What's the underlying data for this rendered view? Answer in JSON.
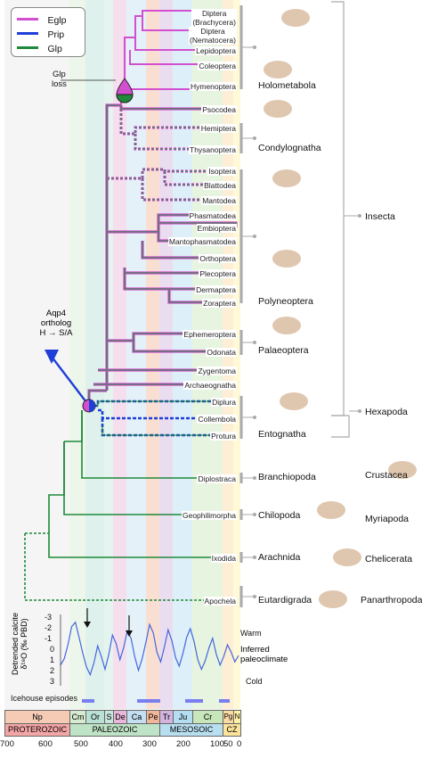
{
  "legend": {
    "items": [
      {
        "label": "Eglp",
        "color": "#d24fd0"
      },
      {
        "label": "Prip",
        "color": "#1f3fd8"
      },
      {
        "label": "Glp",
        "color": "#1e8a3a"
      }
    ]
  },
  "annotations": {
    "glp_loss": "Glp\nloss",
    "aqp4_line1": "Aqp4",
    "aqp4_line2": "ortholog",
    "aqp4_line3": "H → S/A"
  },
  "taxa": [
    {
      "name": "Diptera\n(Brachycera)"
    },
    {
      "name": "Diptera\n(Nematocera)"
    },
    {
      "name": "Lepidoptera"
    },
    {
      "name": "Coleoptera"
    },
    {
      "name": "Hymenoptera"
    },
    {
      "name": "Psocodea"
    },
    {
      "name": "Hemiptera"
    },
    {
      "name": "Thysanoptera"
    },
    {
      "name": "Isoptera"
    },
    {
      "name": "Blattodea"
    },
    {
      "name": "Mantodea"
    },
    {
      "name": "Phasmatodea"
    },
    {
      "name": "Embioptera"
    },
    {
      "name": "Mantophasmatodea"
    },
    {
      "name": "Orthoptera"
    },
    {
      "name": "Plecoptera"
    },
    {
      "name": "Dermaptera"
    },
    {
      "name": "Zoraptera"
    },
    {
      "name": "Ephemeroptera"
    },
    {
      "name": "Odonata"
    },
    {
      "name": "Zygentoma"
    },
    {
      "name": "Archaeognatha"
    },
    {
      "name": "Diplura"
    },
    {
      "name": "Collembola"
    },
    {
      "name": "Protura"
    },
    {
      "name": "Diplostraca"
    },
    {
      "name": "Geophilimorpha"
    },
    {
      "name": "Ixodida"
    },
    {
      "name": "Apochela"
    }
  ],
  "groups": [
    {
      "name": "Holometabola"
    },
    {
      "name": "Condylognatha"
    },
    {
      "name": "Polyneoptera"
    },
    {
      "name": "Palaeoptera"
    },
    {
      "name": "Entognatha"
    },
    {
      "name": "Branchiopoda"
    },
    {
      "name": "Chilopoda"
    },
    {
      "name": "Arachnida"
    },
    {
      "name": "Eutardigrada"
    }
  ],
  "supergroups": [
    {
      "name": "Insecta"
    },
    {
      "name": "Hexapoda"
    },
    {
      "name": "Crustacea"
    },
    {
      "name": "Myriapoda"
    },
    {
      "name": "Chelicerata"
    },
    {
      "name": "Panarthropoda"
    }
  ],
  "climate_panel": {
    "ylabel_line1": "Detrended calcite",
    "ylabel_line2": "δ¹⁸O (‰ PBD)",
    "yticks": [
      "-3",
      "-2",
      "-1",
      "0",
      "1",
      "2",
      "3"
    ],
    "warm": "Warm",
    "cold": "Cold",
    "inferred_line1": "Inferred",
    "inferred_line2": "paleoclimate",
    "icehouse": "Icehouse episodes",
    "series": [
      1.4,
      0.8,
      -0.5,
      -2.2,
      -2.6,
      -1.2,
      0.3,
      1.6,
      2.3,
      1.2,
      -0.4,
      0.6,
      1.8,
      0.4,
      -1.4,
      -0.6,
      0.9,
      -0.2,
      -1.8,
      -1.1,
      0.6,
      1.9,
      0.8,
      -0.7,
      -2.4,
      -1.6,
      0.2,
      1.1,
      -0.3,
      -1.9,
      -0.9,
      0.7,
      1.5,
      0.3,
      -1.2,
      -2.0,
      -0.8,
      0.9,
      1.8,
      1.0,
      -0.2,
      -1.1,
      0.4,
      1.4,
      0.6,
      -0.5,
      0.2,
      1.1,
      0.5
    ]
  },
  "timescale": {
    "periods": [
      {
        "name": "Np",
        "color": "#f6cbb6"
      },
      {
        "name": "Cm",
        "color": "#d6ebd0"
      },
      {
        "name": "Or",
        "color": "#b9e0d4"
      },
      {
        "name": "S",
        "color": "#c6e6dc"
      },
      {
        "name": "De",
        "color": "#e9b7d9"
      },
      {
        "name": "Ca",
        "color": "#c4dff2"
      },
      {
        "name": "Pe",
        "color": "#f2b79a"
      },
      {
        "name": "Tr",
        "color": "#d2b4de"
      },
      {
        "name": "Ju",
        "color": "#b4def2"
      },
      {
        "name": "Cr",
        "color": "#c7e6ba"
      },
      {
        "name": "Pg",
        "color": "#fbd9a2"
      },
      {
        "name": "N",
        "color": "#fff1a6"
      }
    ],
    "eras": [
      {
        "name": "PROTEROZOIC",
        "color": "#f4a6a6"
      },
      {
        "name": "PALEOZOIC",
        "color": "#bfe3c6"
      },
      {
        "name": "MESOSOIC",
        "color": "#b8dff0"
      },
      {
        "name": "CZ",
        "color": "#fbe39c"
      }
    ],
    "axis_ticks": [
      "700",
      "600",
      "500",
      "400",
      "300",
      "200",
      "100",
      "50",
      "0"
    ]
  }
}
